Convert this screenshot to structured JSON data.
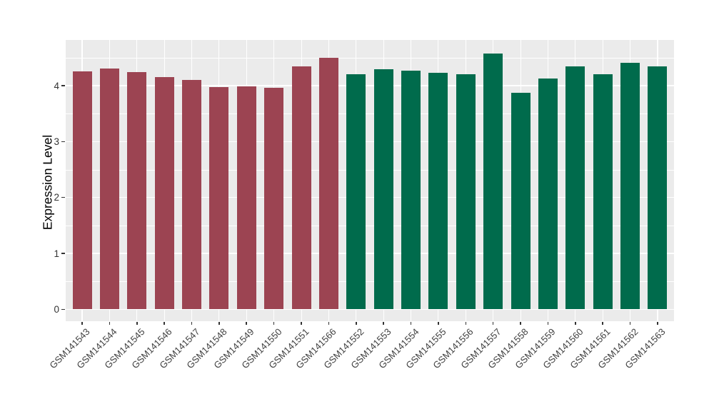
{
  "chart_data": {
    "type": "bar",
    "title": "",
    "xlabel": "",
    "ylabel": "Expression Level",
    "categories": [
      "GSM141543",
      "GSM141544",
      "GSM141545",
      "GSM141546",
      "GSM141547",
      "GSM141548",
      "GSM141549",
      "GSM141550",
      "GSM141551",
      "GSM141566",
      "GSM141552",
      "GSM141553",
      "GSM141554",
      "GSM141555",
      "GSM141556",
      "GSM141557",
      "GSM141558",
      "GSM141559",
      "GSM141560",
      "GSM141561",
      "GSM141562",
      "GSM141563"
    ],
    "values": [
      4.26,
      4.31,
      4.24,
      4.15,
      4.1,
      3.98,
      3.99,
      3.96,
      4.35,
      4.5,
      4.2,
      4.3,
      4.27,
      4.23,
      4.21,
      4.58,
      3.87,
      4.13,
      4.35,
      4.21,
      4.41,
      4.35
    ],
    "bar_colors": [
      "#9C4452",
      "#9C4452",
      "#9C4452",
      "#9C4452",
      "#9C4452",
      "#9C4452",
      "#9C4452",
      "#9C4452",
      "#9C4452",
      "#9C4452",
      "#006B4C",
      "#006B4C",
      "#006B4C",
      "#006B4C",
      "#006B4C",
      "#006B4C",
      "#006B4C",
      "#006B4C",
      "#006B4C",
      "#006B4C",
      "#006B4C",
      "#006B4C"
    ],
    "groups": [
      {
        "name": "maroon-group",
        "color": "#9C4452",
        "count": 10
      },
      {
        "name": "green-group",
        "color": "#006B4C",
        "count": 12
      }
    ],
    "yticks": [
      0,
      1,
      2,
      3,
      4
    ],
    "ylim": [
      0,
      4.82
    ],
    "grid": true,
    "legend": "none",
    "panel_background": "#EBEBEB",
    "gridline_color": "#FFFFFF",
    "axis_text_color": "#404040"
  }
}
